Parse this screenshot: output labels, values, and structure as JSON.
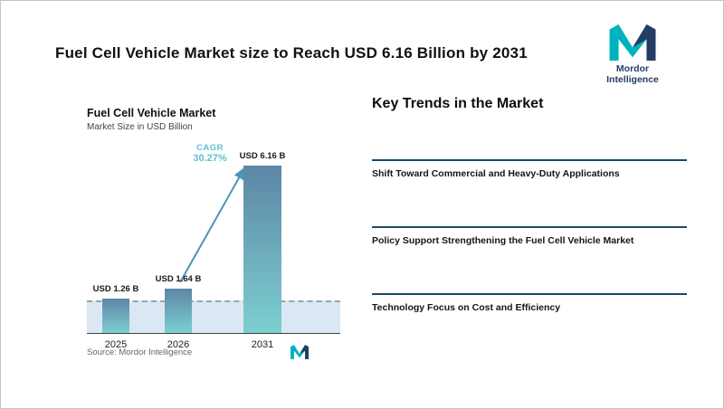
{
  "header": {
    "title": "Fuel Cell Vehicle Market size to Reach USD 6.16 Billion by 2031",
    "brand_name": "Mordor Intelligence"
  },
  "chart": {
    "title": "Fuel Cell Vehicle Market",
    "subtitle": "Market Size in USD Billion",
    "cagr_label": "CAGR",
    "cagr_value": "30.27%",
    "source": "Source: Mordor Intelligence"
  },
  "chart_data": {
    "type": "bar",
    "title": "Fuel Cell Vehicle Market",
    "subtitle": "Market Size in USD Billion",
    "categories": [
      "2025",
      "2026",
      "2031"
    ],
    "values": [
      1.26,
      1.64,
      6.16
    ],
    "bar_labels": [
      "USD 1.26 B",
      "USD 1.64 B",
      "USD 6.16 B"
    ],
    "annotations": [
      {
        "text": "CAGR 30.27%",
        "type": "growth-arrow",
        "from": "2026",
        "to": "2031"
      }
    ],
    "xlabel": "",
    "ylabel": "",
    "ylim": [
      0,
      6.8
    ],
    "grid": false,
    "legend": "none",
    "colors": {
      "bar_gradient_top": "#5d86a6",
      "bar_gradient_bottom": "#7ccfd1",
      "baseline_band": "#dbe8f4",
      "cagr_text": "#5fbfd2",
      "arrow": "#4f93b8",
      "trend_divider": "#1b4a6b",
      "brand_teal": "#00b2bd",
      "brand_navy": "#233d63"
    }
  },
  "trends": {
    "heading": "Key Trends in the Market",
    "items": [
      {
        "label": "Shift Toward Commercial and Heavy-Duty Applications"
      },
      {
        "label": "Policy Support Strengthening the Fuel Cell Vehicle Market"
      },
      {
        "label": "Technology Focus on Cost and Efficiency"
      }
    ]
  }
}
